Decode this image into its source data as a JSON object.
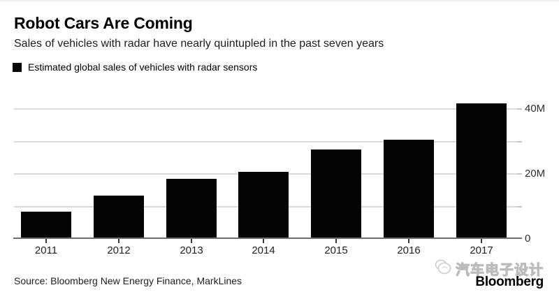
{
  "header": {
    "title": "Robot Cars Are Coming",
    "subtitle": "Sales of vehicles with radar have nearly quintupled in the past seven years"
  },
  "legend": {
    "label": "Estimated global sales of vehicles with radar sensors",
    "swatch_color": "#000000"
  },
  "chart_data": {
    "type": "bar",
    "title": "Robot Cars Are Coming",
    "subtitle": "Sales of vehicles with radar have nearly quintupled in the past seven years",
    "series_name": "Estimated global sales of vehicles with radar sensors",
    "categories": [
      "2011",
      "2012",
      "2013",
      "2014",
      "2015",
      "2016",
      "2017"
    ],
    "values": [
      8.2,
      13.1,
      18.2,
      20.5,
      27.3,
      30.4,
      41.5
    ],
    "unit": "millions of vehicles",
    "ylim": [
      0,
      43
    ],
    "gridline_values": [
      10,
      20,
      30,
      40
    ],
    "yticks": [
      {
        "value": 40,
        "label": "40M"
      },
      {
        "value": 20,
        "label": "20M"
      },
      {
        "value": 0,
        "label": "0"
      }
    ],
    "bar_color": "#050505",
    "grid_on": true,
    "axis_side": "right",
    "legend_position": "top-left"
  },
  "footer": {
    "source": "Source: Bloomberg New Energy Finance, MarkLines",
    "brand": "Bloomberg"
  },
  "watermark": {
    "text": "汽车电子设计"
  }
}
